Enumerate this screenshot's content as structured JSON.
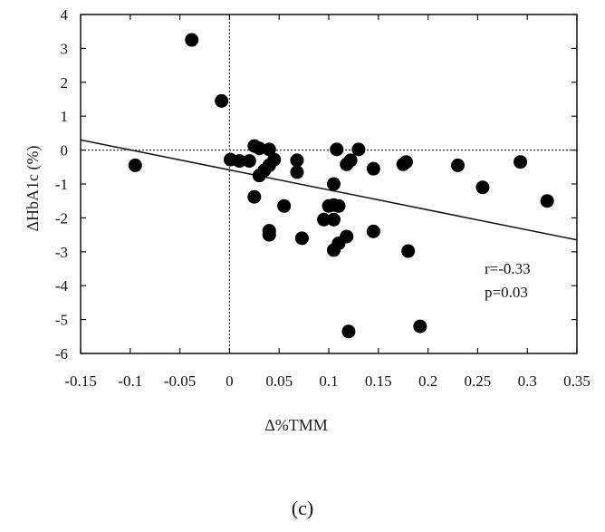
{
  "chart_data": {
    "type": "scatter",
    "xlabel": "Δ%TMM",
    "ylabel": "ΔHbA1c (%)",
    "xlim": [
      -0.15,
      0.35
    ],
    "ylim": [
      -6,
      4
    ],
    "x_ticks": [
      -0.15,
      -0.1,
      -0.05,
      0,
      0.05,
      0.1,
      0.15,
      0.2,
      0.25,
      0.3,
      0.35
    ],
    "x_tick_labels": [
      "-0.15",
      "-0.1",
      "-0.05",
      "0",
      "0.05",
      "0.1",
      "0.15",
      "0.2",
      "0.25",
      "0.3",
      "0.35"
    ],
    "y_ticks": [
      4,
      3,
      2,
      1,
      0,
      -1,
      -2,
      -3,
      -4,
      -5,
      -6
    ],
    "y_tick_labels": [
      "4",
      "3",
      "2",
      "1",
      "0",
      "-1",
      "-2",
      "-3",
      "-4",
      "-5",
      "-6"
    ],
    "reference_lines": {
      "x": 0,
      "y": 0,
      "style": "dotted"
    },
    "regression_line": {
      "x": [
        -0.15,
        0.35
      ],
      "y": [
        0.3,
        -2.65
      ]
    },
    "annotations": [
      "r=-0.33",
      "p=0.03"
    ],
    "grid": false,
    "points": [
      [
        -0.095,
        -0.45
      ],
      [
        -0.038,
        3.25
      ],
      [
        -0.008,
        1.45
      ],
      [
        0.001,
        -0.28
      ],
      [
        0.01,
        -0.32
      ],
      [
        0.02,
        -0.32
      ],
      [
        0.025,
        0.12
      ],
      [
        0.03,
        0.05
      ],
      [
        0.04,
        0.02
      ],
      [
        0.03,
        -0.75
      ],
      [
        0.035,
        -0.6
      ],
      [
        0.04,
        -0.45
      ],
      [
        0.045,
        -0.28
      ],
      [
        0.025,
        -1.38
      ],
      [
        0.04,
        -2.38
      ],
      [
        0.04,
        -2.5
      ],
      [
        0.055,
        -1.65
      ],
      [
        0.068,
        -0.3
      ],
      [
        0.068,
        -0.65
      ],
      [
        0.073,
        -2.6
      ],
      [
        0.095,
        -2.05
      ],
      [
        0.1,
        -1.65
      ],
      [
        0.105,
        -1.62
      ],
      [
        0.11,
        -1.65
      ],
      [
        0.105,
        -2.05
      ],
      [
        0.105,
        -1.0
      ],
      [
        0.105,
        -2.95
      ],
      [
        0.11,
        -2.75
      ],
      [
        0.118,
        -2.55
      ],
      [
        0.108,
        0.02
      ],
      [
        0.118,
        -0.42
      ],
      [
        0.122,
        -0.3
      ],
      [
        0.13,
        0.02
      ],
      [
        0.145,
        -0.55
      ],
      [
        0.145,
        -2.4
      ],
      [
        0.12,
        -5.35
      ],
      [
        0.175,
        -0.42
      ],
      [
        0.178,
        -0.35
      ],
      [
        0.18,
        -2.98
      ],
      [
        0.192,
        -5.2
      ],
      [
        0.23,
        -0.45
      ],
      [
        0.255,
        -1.1
      ],
      [
        0.293,
        -0.35
      ],
      [
        0.32,
        -1.5
      ]
    ]
  },
  "caption": "(c)"
}
